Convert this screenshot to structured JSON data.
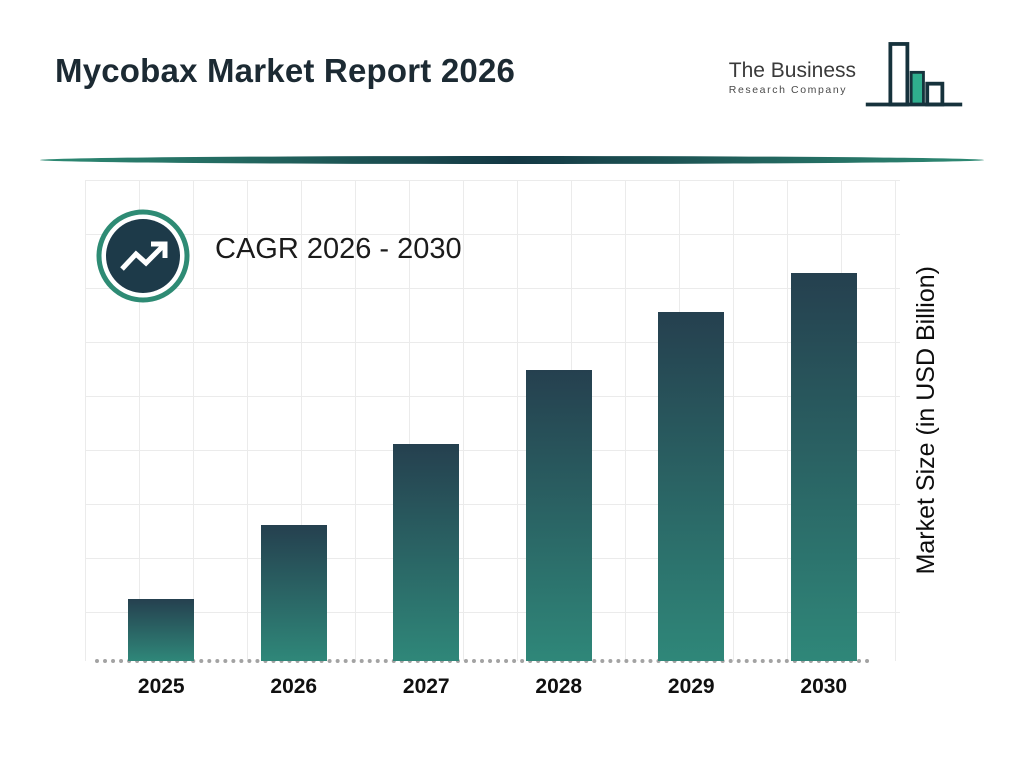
{
  "page": {
    "title_label": "Mycobax Market Report 2026"
  },
  "logo": {
    "line1": "The Business",
    "line2": "Research Company"
  },
  "cagr": {
    "label": "CAGR 2026 - 2030"
  },
  "chart_data": {
    "type": "bar",
    "title": "Mycobax Market Report 2026",
    "categories": [
      "2025",
      "2026",
      "2027",
      "2028",
      "2029",
      "2030"
    ],
    "values": [
      16,
      35,
      56,
      75,
      90,
      100
    ],
    "value_scale": "relative heights, tallest bar (2030) = 100; chart shows no numeric data labels or y-axis ticks",
    "xlabel": "",
    "ylabel": "Market Size (in USD Billion)",
    "ylim": [
      0,
      124
    ],
    "grid": true,
    "legend": false,
    "bar_gradient": [
      "#25404f",
      "#2f8779"
    ]
  },
  "colors": {
    "accent_teal": "#2e8b74",
    "dark_navy": "#1d3a49",
    "title_text": "#1c2a33",
    "grid_line": "#ebebeb"
  }
}
